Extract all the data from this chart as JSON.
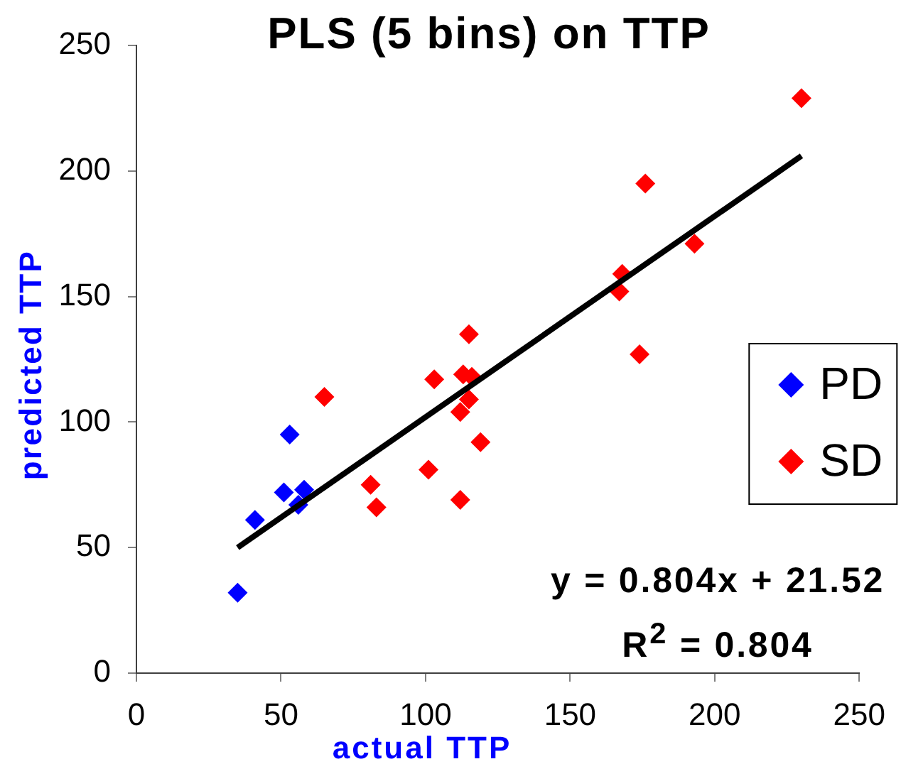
{
  "chart_data": {
    "type": "scatter",
    "title": "PLS (5 bins) on TTP",
    "xlabel": "actual TTP",
    "ylabel": "predicted TTP",
    "xlim": [
      0,
      250
    ],
    "ylim": [
      0,
      250
    ],
    "xticks": [
      0,
      50,
      100,
      150,
      200,
      250
    ],
    "yticks": [
      0,
      50,
      100,
      150,
      200,
      250
    ],
    "legend": "right",
    "marker": "diamond",
    "annotations": [
      "y = 0.804x + 21.52",
      "R$^{2}$ = 0.804"
    ],
    "series": [
      {
        "name": "PD",
        "color": "#0000ff",
        "x": [
          35,
          41,
          51,
          53,
          56,
          58
        ],
        "values": [
          32,
          61,
          72,
          95,
          67,
          73
        ]
      },
      {
        "name": "SD",
        "color": "#ff0000",
        "x": [
          65,
          81,
          83,
          101,
          103,
          112,
          112,
          113,
          115,
          115,
          116,
          119,
          167,
          168,
          174,
          176,
          193,
          230
        ],
        "values": [
          110,
          75,
          66,
          81,
          117,
          104,
          69,
          119,
          135,
          109,
          118,
          92,
          152,
          159,
          127,
          195,
          171,
          229
        ]
      },
      {
        "type": "line",
        "color": "#000000",
        "marker": "none",
        "x": [
          35,
          230
        ],
        "values": [
          50,
          206
        ]
      }
    ]
  }
}
